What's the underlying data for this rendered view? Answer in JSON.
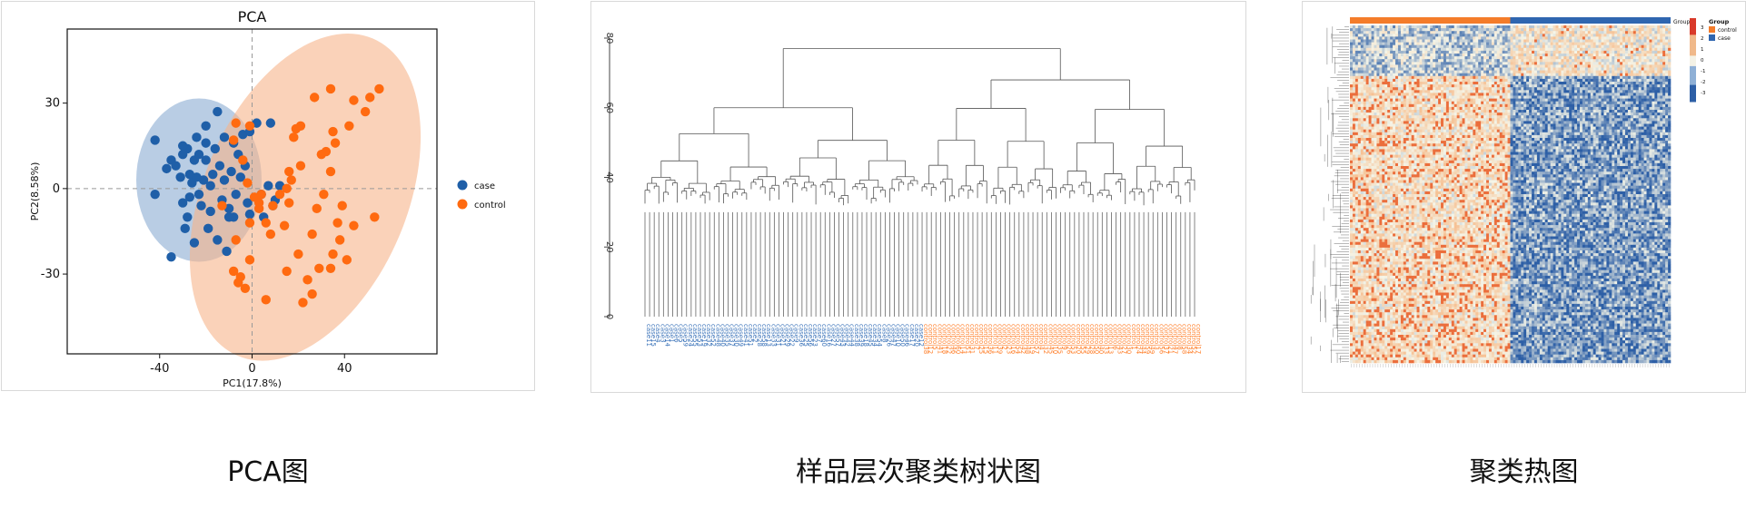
{
  "captions": {
    "pca": "PCA图",
    "dendrogram": "样品层次聚类树状图",
    "heatmap": "聚类热图"
  },
  "colors": {
    "case": "#1f5fa8",
    "control": "#ff6a10",
    "case_ellipse": "#7fa4cd",
    "control_ellipse": "#f6b48a"
  },
  "chart_data": [
    {
      "type": "scatter",
      "title": "PCA",
      "xlabel": "PC1(17.8%)",
      "ylabel": "PC2(8.58%)",
      "xlim": [
        -80,
        80
      ],
      "ylim": [
        -58,
        56
      ],
      "xticks": [
        -40,
        0,
        40
      ],
      "yticks": [
        -30,
        0,
        30
      ],
      "reference_lines": {
        "x": 0,
        "y": 0
      },
      "legend_position": "right",
      "series": [
        {
          "name": "case",
          "color": "#1f5fa8",
          "points": [
            [
              -35,
              -24
            ],
            [
              -42,
              17
            ],
            [
              -37,
              7
            ],
            [
              -42,
              -2
            ],
            [
              -30,
              -5
            ],
            [
              -35,
              10
            ],
            [
              -28,
              14
            ],
            [
              -31,
              4
            ],
            [
              -27,
              5
            ],
            [
              -25,
              10
            ],
            [
              -30,
              12
            ],
            [
              -24,
              18
            ],
            [
              -20,
              16
            ],
            [
              -23,
              12
            ],
            [
              -26,
              2
            ],
            [
              -22,
              -6
            ],
            [
              -18,
              -8
            ],
            [
              -21,
              3
            ],
            [
              -17,
              5
            ],
            [
              -14,
              8
            ],
            [
              -12,
              3
            ],
            [
              -9,
              6
            ],
            [
              -5,
              4
            ],
            [
              -13,
              -4
            ],
            [
              -10,
              -7
            ],
            [
              -19,
              -14
            ],
            [
              -15,
              -18
            ],
            [
              -11,
              -22
            ],
            [
              -28,
              -10
            ],
            [
              -25,
              -19
            ],
            [
              -33,
              8
            ],
            [
              -16,
              14
            ],
            [
              -12,
              18
            ],
            [
              -8,
              16
            ],
            [
              -4,
              19
            ],
            [
              -1,
              20
            ],
            [
              2,
              23
            ],
            [
              -6,
              12
            ],
            [
              -3,
              8
            ],
            [
              -7,
              -2
            ],
            [
              -2,
              -5
            ],
            [
              -1,
              -9
            ],
            [
              4,
              -2
            ],
            [
              7,
              1
            ],
            [
              9,
              -6
            ],
            [
              -20,
              22
            ],
            [
              -15,
              27
            ],
            [
              -30,
              15
            ],
            [
              -27,
              -3
            ],
            [
              -8,
              -10
            ],
            [
              8,
              23
            ],
            [
              12,
              1
            ],
            [
              -23,
              -2
            ],
            [
              -18,
              1
            ],
            [
              -20,
              10
            ],
            [
              -24,
              4
            ],
            [
              -29,
              -14
            ],
            [
              -10,
              -10
            ],
            [
              10,
              -4
            ],
            [
              5,
              -10
            ]
          ]
        },
        {
          "name": "control",
          "color": "#ff6a10",
          "points": [
            [
              55,
              35
            ],
            [
              51,
              32
            ],
            [
              44,
              31
            ],
            [
              49,
              27
            ],
            [
              34,
              35
            ],
            [
              21,
              22
            ],
            [
              27,
              32
            ],
            [
              19,
              21
            ],
            [
              35,
              20
            ],
            [
              42,
              22
            ],
            [
              32,
              13
            ],
            [
              30,
              12
            ],
            [
              36,
              16
            ],
            [
              34,
              6
            ],
            [
              21,
              8
            ],
            [
              16,
              6
            ],
            [
              15,
              0
            ],
            [
              17,
              3
            ],
            [
              12,
              -2
            ],
            [
              9,
              -6
            ],
            [
              6,
              -12
            ],
            [
              -1,
              -12
            ],
            [
              3,
              -7
            ],
            [
              4,
              -2
            ],
            [
              28,
              -7
            ],
            [
              26,
              -16
            ],
            [
              37,
              -12
            ],
            [
              38,
              -18
            ],
            [
              35,
              -23
            ],
            [
              34,
              -28
            ],
            [
              29,
              -28
            ],
            [
              20,
              -23
            ],
            [
              24,
              -32
            ],
            [
              22,
              -40
            ],
            [
              26,
              -37
            ],
            [
              14,
              -13
            ],
            [
              15,
              -29
            ],
            [
              6,
              -39
            ],
            [
              -5,
              -31
            ],
            [
              -3,
              -35
            ],
            [
              -6,
              -33
            ],
            [
              -1,
              -25
            ],
            [
              -8,
              -29
            ],
            [
              16,
              -5
            ],
            [
              53,
              -10
            ],
            [
              -1,
              22
            ],
            [
              -8,
              17
            ],
            [
              -4,
              10
            ],
            [
              -2,
              2
            ],
            [
              1,
              -3
            ],
            [
              3,
              -5
            ],
            [
              -7,
              23
            ],
            [
              -13,
              -6
            ],
            [
              -7,
              -18
            ],
            [
              39,
              -6
            ],
            [
              44,
              -13
            ],
            [
              41,
              -25
            ],
            [
              31,
              -2
            ],
            [
              8,
              -16
            ],
            [
              18,
              18
            ]
          ]
        }
      ]
    },
    {
      "type": "dendrogram",
      "ylim": [
        0,
        80
      ],
      "yticks": [
        0,
        20,
        40,
        60,
        80
      ],
      "groups": [
        {
          "name": "case",
          "color": "#3b73b9",
          "count": 60
        },
        {
          "name": "control",
          "color": "#ff7f2a",
          "count": 60
        }
      ],
      "leaves_case": [
        "case11",
        "case15",
        "case4",
        "case3",
        "case14",
        "case1",
        "case6",
        "case5",
        "case59",
        "case24",
        "case55",
        "case53",
        "case19",
        "case32",
        "case52",
        "case48",
        "case40",
        "case35",
        "case37",
        "case30",
        "case49",
        "case41",
        "case51",
        "case2",
        "case28",
        "case58",
        "case13",
        "case33",
        "case31",
        "case21",
        "case29",
        "case22",
        "case9",
        "case36",
        "case25",
        "case56",
        "case23",
        "case7",
        "case60",
        "case16",
        "case27",
        "case57",
        "case43",
        "case42",
        "case44",
        "case38",
        "case39",
        "case18",
        "case45",
        "case34",
        "case54",
        "case8",
        "case26",
        "case47",
        "case10",
        "case50",
        "case46",
        "case17",
        "case20",
        "case12"
      ],
      "leaves_control": [
        "control38",
        "control12",
        "control5",
        "control41",
        "control18",
        "control22",
        "control46",
        "control60",
        "control14",
        "control51",
        "control31",
        "control7",
        "control25",
        "control15",
        "control36",
        "control11",
        "control39",
        "control2",
        "control23",
        "control16",
        "control54",
        "control42",
        "control48",
        "control19",
        "control57",
        "control4",
        "control32",
        "control45",
        "control10",
        "control35",
        "control9",
        "control26",
        "control53",
        "control20",
        "control55",
        "control29",
        "control28",
        "control50",
        "control40",
        "control33",
        "control13",
        "control6",
        "control43",
        "control27",
        "control30",
        "control1",
        "control24",
        "control44",
        "control59",
        "control49",
        "control3",
        "control56",
        "control37",
        "control21",
        "control47",
        "control8",
        "control58",
        "control34",
        "control52",
        "control17"
      ],
      "major_merges": {
        "root": 77,
        "case_cluster": 60,
        "control_cluster": 68
      }
    },
    {
      "type": "heatmap",
      "legend_title": "Group",
      "groups": [
        {
          "name": "control",
          "color": "#f47c2a",
          "count": 60
        },
        {
          "name": "case",
          "color": "#2f66b0",
          "count": 60
        }
      ],
      "color_scale": {
        "min": -3,
        "max": 3,
        "ticks": [
          3,
          2,
          1,
          0,
          -1,
          -2,
          -3
        ],
        "low": "#2d5fa6",
        "mid": "#f5f5e8",
        "high": "#d93a2a"
      },
      "rows": 120,
      "columns": 120
    }
  ]
}
